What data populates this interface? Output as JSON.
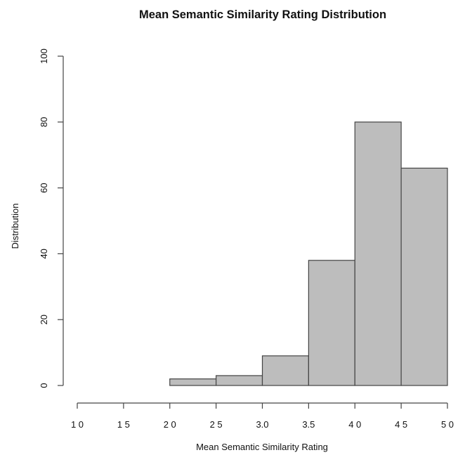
{
  "chart_data": {
    "type": "bar",
    "title": "Mean Semantic Similarity Rating Distribution",
    "xlabel": "Mean Semantic Similarity Rating",
    "ylabel": "Distribution",
    "xlim": [
      1.0,
      5.0
    ],
    "ylim": [
      0,
      100
    ],
    "x_ticks": [
      1.0,
      1.5,
      2.0,
      2.5,
      3.0,
      3.5,
      4.0,
      4.5,
      5.0
    ],
    "x_tick_labels": [
      "1 0",
      "1 5",
      "2 0",
      "2 5",
      "3.0",
      "3.5",
      "4 0",
      "4 5",
      "5 0"
    ],
    "y_ticks": [
      0,
      20,
      40,
      60,
      80,
      100
    ],
    "y_tick_labels": [
      "0",
      "20",
      "40",
      "60",
      "80",
      "100"
    ],
    "bins": [
      {
        "start": 2.0,
        "end": 2.5,
        "value": 2
      },
      {
        "start": 2.5,
        "end": 3.0,
        "value": 3
      },
      {
        "start": 3.0,
        "end": 3.5,
        "value": 9
      },
      {
        "start": 3.5,
        "end": 4.0,
        "value": 38
      },
      {
        "start": 4.0,
        "end": 4.5,
        "value": 80
      },
      {
        "start": 4.5,
        "end": 5.0,
        "value": 66
      }
    ],
    "grid": false,
    "colors": {
      "bar_fill": "#bdbdbd",
      "bar_stroke": "#444444",
      "axis": "#444444",
      "text": "#111111"
    }
  }
}
